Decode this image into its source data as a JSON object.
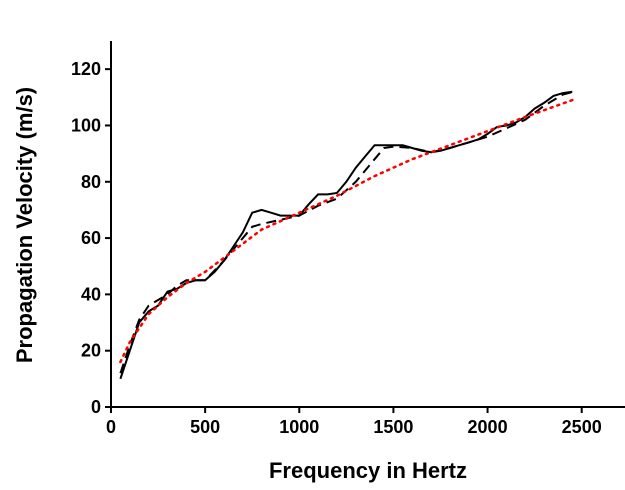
{
  "chart_data": {
    "type": "line",
    "xlabel": "Frequency in Hertz",
    "ylabel": "Propagation Velocity (m/s)",
    "xlim": [
      0,
      2730
    ],
    "xticks": [
      0,
      500,
      1000,
      1500,
      2000,
      2500
    ],
    "ylim": [
      0,
      130
    ],
    "yticks": [
      0,
      20,
      40,
      60,
      80,
      100,
      120
    ],
    "grid": false,
    "series": [
      {
        "color": "#000000",
        "dash": "solid",
        "x": [
          50,
          100,
          150,
          200,
          250,
          300,
          350,
          400,
          450,
          500,
          550,
          600,
          650,
          700,
          750,
          800,
          850,
          900,
          950,
          1000,
          1050,
          1100,
          1150,
          1200,
          1250,
          1300,
          1350,
          1400,
          1450,
          1500,
          1550,
          1600,
          1650,
          1700,
          1750,
          1800,
          1850,
          1900,
          1950,
          2000,
          2050,
          2100,
          2150,
          2200,
          2250,
          2300,
          2350,
          2400,
          2450
        ],
        "values": [
          10,
          20,
          30,
          34,
          36,
          41,
          42,
          44,
          45,
          45,
          48,
          52,
          57,
          62,
          69,
          70,
          69,
          68,
          68,
          68,
          72,
          75.5,
          75.5,
          76,
          80,
          85,
          89,
          93,
          93,
          93,
          93,
          92,
          91,
          90.5,
          91,
          92,
          93,
          94,
          95,
          97,
          99.5,
          100,
          101,
          103,
          106,
          108,
          110.5,
          111.5,
          112
        ]
      },
      {
        "color": "#000000",
        "dash": "dashed",
        "x": [
          50,
          100,
          150,
          200,
          250,
          300,
          350,
          400,
          500,
          600,
          700,
          750,
          800,
          900,
          1000,
          1100,
          1200,
          1300,
          1400,
          1450,
          1500,
          1600,
          1700,
          1800,
          1900,
          2000,
          2100,
          2200,
          2300,
          2400,
          2460
        ],
        "values": [
          12,
          22,
          31,
          36,
          38,
          40,
          43,
          45,
          45,
          52,
          60,
          64,
          65,
          66.5,
          68,
          71.5,
          74,
          80,
          88,
          92,
          92.5,
          92,
          90.5,
          92,
          94,
          96,
          99,
          102,
          107,
          111,
          112
        ]
      },
      {
        "color": "#ff0000",
        "dash": "dotted",
        "x": [
          50,
          100,
          200,
          300,
          400,
          500,
          600,
          700,
          800,
          1000,
          1200,
          1400,
          1600,
          1800,
          2000,
          2200,
          2450
        ],
        "values": [
          16,
          23,
          33,
          39,
          44,
          48,
          53,
          58,
          63,
          69,
          75,
          82,
          88,
          93,
          98,
          103,
          109
        ]
      }
    ]
  }
}
